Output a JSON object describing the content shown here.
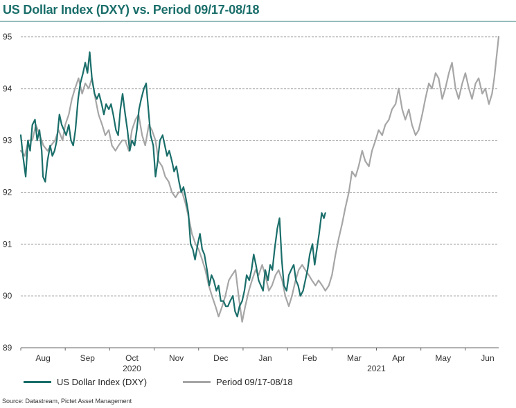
{
  "title": "US Dollar Index (DXY) vs. Period 09/17-08/18",
  "source": "Source: Datastream, Pictet Asset Management",
  "colors": {
    "dxy": "#1a6e6a",
    "period": "#a6a6a6",
    "grid": "#9a9a9a",
    "axis": "#666666"
  },
  "chart_data": {
    "type": "line",
    "title": "US Dollar Index (DXY) vs. Period 09/17-08/18",
    "xlabel": "",
    "ylabel": "",
    "ylim": [
      89,
      95
    ],
    "yticks": [
      89,
      90,
      91,
      92,
      93,
      94,
      95
    ],
    "grid": "horizontal-dashed",
    "legend_position": "bottom-left",
    "x_unit": "months since 2020-08-01",
    "xlim": [
      0,
      10.75
    ],
    "x_month_ticks": [
      {
        "label": "Aug",
        "x": 0.5
      },
      {
        "label": "Sep",
        "x": 1.5
      },
      {
        "label": "Oct",
        "x": 2.5
      },
      {
        "label": "Nov",
        "x": 3.5
      },
      {
        "label": "Dec",
        "x": 4.5
      },
      {
        "label": "Jan",
        "x": 5.5
      },
      {
        "label": "Feb",
        "x": 6.5
      },
      {
        "label": "Mar",
        "x": 7.5
      },
      {
        "label": "Apr",
        "x": 8.5
      },
      {
        "label": "May",
        "x": 9.5
      },
      {
        "label": "Jun",
        "x": 10.5
      }
    ],
    "x_year_labels": [
      {
        "label": "2020",
        "x": 2.5
      },
      {
        "label": "2021",
        "x": 8.0
      }
    ],
    "series": [
      {
        "name": "US Dollar Index (DXY)",
        "color_key": "dxy",
        "points": [
          [
            0.0,
            93.1
          ],
          [
            0.05,
            92.7
          ],
          [
            0.11,
            92.3
          ],
          [
            0.16,
            93.0
          ],
          [
            0.21,
            92.8
          ],
          [
            0.26,
            93.3
          ],
          [
            0.32,
            93.4
          ],
          [
            0.37,
            93.0
          ],
          [
            0.42,
            93.2
          ],
          [
            0.47,
            92.8
          ],
          [
            0.5,
            92.3
          ],
          [
            0.55,
            92.2
          ],
          [
            0.6,
            92.6
          ],
          [
            0.66,
            92.9
          ],
          [
            0.71,
            92.7
          ],
          [
            0.76,
            92.8
          ],
          [
            0.81,
            93.0
          ],
          [
            0.87,
            93.5
          ],
          [
            0.92,
            93.3
          ],
          [
            0.97,
            93.2
          ],
          [
            1.02,
            93.1
          ],
          [
            1.08,
            93.3
          ],
          [
            1.13,
            93.0
          ],
          [
            1.18,
            92.9
          ],
          [
            1.23,
            93.2
          ],
          [
            1.29,
            93.8
          ],
          [
            1.34,
            94.1
          ],
          [
            1.4,
            94.3
          ],
          [
            1.45,
            94.5
          ],
          [
            1.5,
            94.3
          ],
          [
            1.55,
            94.7
          ],
          [
            1.6,
            94.2
          ],
          [
            1.66,
            93.9
          ],
          [
            1.71,
            93.8
          ],
          [
            1.76,
            93.9
          ],
          [
            1.82,
            93.7
          ],
          [
            1.87,
            93.5
          ],
          [
            1.92,
            93.7
          ],
          [
            1.98,
            93.6
          ],
          [
            2.03,
            93.7
          ],
          [
            2.08,
            93.5
          ],
          [
            2.14,
            93.2
          ],
          [
            2.19,
            93.1
          ],
          [
            2.24,
            93.6
          ],
          [
            2.29,
            93.9
          ],
          [
            2.35,
            93.5
          ],
          [
            2.4,
            93.2
          ],
          [
            2.45,
            92.8
          ],
          [
            2.5,
            93.0
          ],
          [
            2.56,
            92.9
          ],
          [
            2.61,
            93.2
          ],
          [
            2.66,
            93.6
          ],
          [
            2.71,
            93.8
          ],
          [
            2.77,
            94.0
          ],
          [
            2.82,
            94.1
          ],
          [
            2.87,
            93.6
          ],
          [
            2.92,
            93.1
          ],
          [
            2.98,
            92.9
          ],
          [
            3.03,
            92.3
          ],
          [
            3.08,
            92.6
          ],
          [
            3.13,
            93.0
          ],
          [
            3.19,
            93.1
          ],
          [
            3.24,
            92.9
          ],
          [
            3.29,
            92.7
          ],
          [
            3.34,
            92.8
          ],
          [
            3.4,
            92.6
          ],
          [
            3.45,
            92.4
          ],
          [
            3.5,
            92.5
          ],
          [
            3.56,
            92.2
          ],
          [
            3.61,
            92.0
          ],
          [
            3.66,
            92.1
          ],
          [
            3.71,
            91.9
          ],
          [
            3.77,
            91.6
          ],
          [
            3.82,
            91.0
          ],
          [
            3.87,
            90.9
          ],
          [
            3.92,
            90.7
          ],
          [
            3.98,
            91.0
          ],
          [
            4.03,
            91.2
          ],
          [
            4.08,
            90.9
          ],
          [
            4.13,
            90.8
          ],
          [
            4.19,
            90.5
          ],
          [
            4.24,
            90.2
          ],
          [
            4.29,
            90.4
          ],
          [
            4.34,
            90.3
          ],
          [
            4.4,
            90.1
          ],
          [
            4.45,
            90.2
          ],
          [
            4.5,
            89.9
          ],
          [
            4.56,
            89.9
          ],
          [
            4.61,
            89.8
          ],
          [
            4.66,
            89.8
          ],
          [
            4.71,
            89.9
          ],
          [
            4.77,
            90.0
          ],
          [
            4.82,
            89.7
          ],
          [
            4.87,
            89.6
          ],
          [
            4.92,
            89.8
          ],
          [
            4.98,
            89.9
          ],
          [
            5.03,
            90.1
          ],
          [
            5.08,
            90.4
          ],
          [
            5.14,
            90.3
          ],
          [
            5.19,
            90.5
          ],
          [
            5.24,
            90.8
          ],
          [
            5.29,
            90.6
          ],
          [
            5.35,
            90.3
          ],
          [
            5.4,
            90.2
          ],
          [
            5.45,
            90.1
          ],
          [
            5.5,
            90.5
          ],
          [
            5.56,
            90.3
          ],
          [
            5.61,
            90.6
          ],
          [
            5.66,
            90.5
          ],
          [
            5.71,
            90.9
          ],
          [
            5.77,
            91.3
          ],
          [
            5.82,
            91.5
          ],
          [
            5.87,
            90.7
          ],
          [
            5.92,
            90.2
          ],
          [
            5.98,
            90.1
          ],
          [
            6.03,
            90.4
          ],
          [
            6.08,
            90.5
          ],
          [
            6.14,
            90.6
          ],
          [
            6.19,
            90.3
          ],
          [
            6.24,
            90.2
          ],
          [
            6.29,
            90.0
          ],
          [
            6.35,
            90.1
          ],
          [
            6.4,
            90.3
          ],
          [
            6.45,
            90.5
          ],
          [
            6.5,
            90.8
          ],
          [
            6.56,
            91.0
          ],
          [
            6.61,
            90.6
          ],
          [
            6.66,
            90.9
          ],
          [
            6.71,
            91.2
          ],
          [
            6.77,
            91.6
          ],
          [
            6.82,
            91.5
          ],
          [
            6.85,
            91.6
          ]
        ]
      },
      {
        "name": "Period 09/17-08/18",
        "color_key": "period",
        "points": [
          [
            0.0,
            92.8
          ],
          [
            0.09,
            92.7
          ],
          [
            0.17,
            93.0
          ],
          [
            0.26,
            93.0
          ],
          [
            0.34,
            93.3
          ],
          [
            0.43,
            93.1
          ],
          [
            0.51,
            92.9
          ],
          [
            0.6,
            92.8
          ],
          [
            0.68,
            92.9
          ],
          [
            0.77,
            93.0
          ],
          [
            0.85,
            93.2
          ],
          [
            0.94,
            93.0
          ],
          [
            1.0,
            93.3
          ],
          [
            1.08,
            93.5
          ],
          [
            1.15,
            93.8
          ],
          [
            1.22,
            94.0
          ],
          [
            1.3,
            94.2
          ],
          [
            1.38,
            93.9
          ],
          [
            1.45,
            94.1
          ],
          [
            1.53,
            94.0
          ],
          [
            1.6,
            94.2
          ],
          [
            1.68,
            93.8
          ],
          [
            1.75,
            93.5
          ],
          [
            1.83,
            93.3
          ],
          [
            1.9,
            93.1
          ],
          [
            1.98,
            93.2
          ],
          [
            2.05,
            92.9
          ],
          [
            2.13,
            92.8
          ],
          [
            2.2,
            92.9
          ],
          [
            2.28,
            93.0
          ],
          [
            2.35,
            93.0
          ],
          [
            2.43,
            92.8
          ],
          [
            2.5,
            93.2
          ],
          [
            2.58,
            93.4
          ],
          [
            2.65,
            93.5
          ],
          [
            2.73,
            93.1
          ],
          [
            2.8,
            92.9
          ],
          [
            2.88,
            93.3
          ],
          [
            2.95,
            93.2
          ],
          [
            3.03,
            93.0
          ],
          [
            3.1,
            92.6
          ],
          [
            3.18,
            92.5
          ],
          [
            3.25,
            92.3
          ],
          [
            3.33,
            92.2
          ],
          [
            3.4,
            92.0
          ],
          [
            3.48,
            91.9
          ],
          [
            3.55,
            92.0
          ],
          [
            3.63,
            92.0
          ],
          [
            3.7,
            91.8
          ],
          [
            3.78,
            91.5
          ],
          [
            3.85,
            91.2
          ],
          [
            3.93,
            91.0
          ],
          [
            4.0,
            90.9
          ],
          [
            4.08,
            90.7
          ],
          [
            4.15,
            90.5
          ],
          [
            4.23,
            90.2
          ],
          [
            4.3,
            90.0
          ],
          [
            4.38,
            89.8
          ],
          [
            4.45,
            89.6
          ],
          [
            4.53,
            89.8
          ],
          [
            4.6,
            90.0
          ],
          [
            4.68,
            90.3
          ],
          [
            4.75,
            90.4
          ],
          [
            4.83,
            90.5
          ],
          [
            4.9,
            90.0
          ],
          [
            4.98,
            89.5
          ],
          [
            5.05,
            89.8
          ],
          [
            5.13,
            90.1
          ],
          [
            5.2,
            90.3
          ],
          [
            5.28,
            90.5
          ],
          [
            5.35,
            90.4
          ],
          [
            5.43,
            90.6
          ],
          [
            5.5,
            90.4
          ],
          [
            5.58,
            90.1
          ],
          [
            5.65,
            90.2
          ],
          [
            5.73,
            90.4
          ],
          [
            5.8,
            90.5
          ],
          [
            5.88,
            90.3
          ],
          [
            5.95,
            90.0
          ],
          [
            6.03,
            89.8
          ],
          [
            6.1,
            90.0
          ],
          [
            6.18,
            90.3
          ],
          [
            6.25,
            90.5
          ],
          [
            6.33,
            90.6
          ],
          [
            6.4,
            90.5
          ],
          [
            6.48,
            90.4
          ],
          [
            6.55,
            90.3
          ],
          [
            6.63,
            90.2
          ],
          [
            6.7,
            90.3
          ],
          [
            6.78,
            90.2
          ],
          [
            6.85,
            90.1
          ],
          [
            6.93,
            90.2
          ],
          [
            7.0,
            90.4
          ],
          [
            7.08,
            90.8
          ],
          [
            7.15,
            91.1
          ],
          [
            7.23,
            91.4
          ],
          [
            7.3,
            91.7
          ],
          [
            7.38,
            92.0
          ],
          [
            7.45,
            92.4
          ],
          [
            7.53,
            92.3
          ],
          [
            7.6,
            92.5
          ],
          [
            7.68,
            92.8
          ],
          [
            7.75,
            92.6
          ],
          [
            7.83,
            92.5
          ],
          [
            7.9,
            92.8
          ],
          [
            7.98,
            93.0
          ],
          [
            8.05,
            93.2
          ],
          [
            8.13,
            93.1
          ],
          [
            8.2,
            93.3
          ],
          [
            8.28,
            93.4
          ],
          [
            8.35,
            93.6
          ],
          [
            8.43,
            93.7
          ],
          [
            8.5,
            94.0
          ],
          [
            8.58,
            93.6
          ],
          [
            8.65,
            93.4
          ],
          [
            8.73,
            93.6
          ],
          [
            8.8,
            93.3
          ],
          [
            8.88,
            93.1
          ],
          [
            8.95,
            93.2
          ],
          [
            9.03,
            93.5
          ],
          [
            9.1,
            93.8
          ],
          [
            9.18,
            94.1
          ],
          [
            9.25,
            94.0
          ],
          [
            9.33,
            94.3
          ],
          [
            9.4,
            94.2
          ],
          [
            9.48,
            93.8
          ],
          [
            9.55,
            94.0
          ],
          [
            9.63,
            94.3
          ],
          [
            9.7,
            94.5
          ],
          [
            9.78,
            94.0
          ],
          [
            9.85,
            93.8
          ],
          [
            9.93,
            94.1
          ],
          [
            10.0,
            94.3
          ],
          [
            10.08,
            94.0
          ],
          [
            10.15,
            93.8
          ],
          [
            10.23,
            94.1
          ],
          [
            10.3,
            94.2
          ],
          [
            10.38,
            93.9
          ],
          [
            10.45,
            94.0
          ],
          [
            10.53,
            93.7
          ],
          [
            10.6,
            93.9
          ],
          [
            10.65,
            94.2
          ],
          [
            10.7,
            94.6
          ],
          [
            10.75,
            95.0
          ]
        ]
      }
    ]
  }
}
